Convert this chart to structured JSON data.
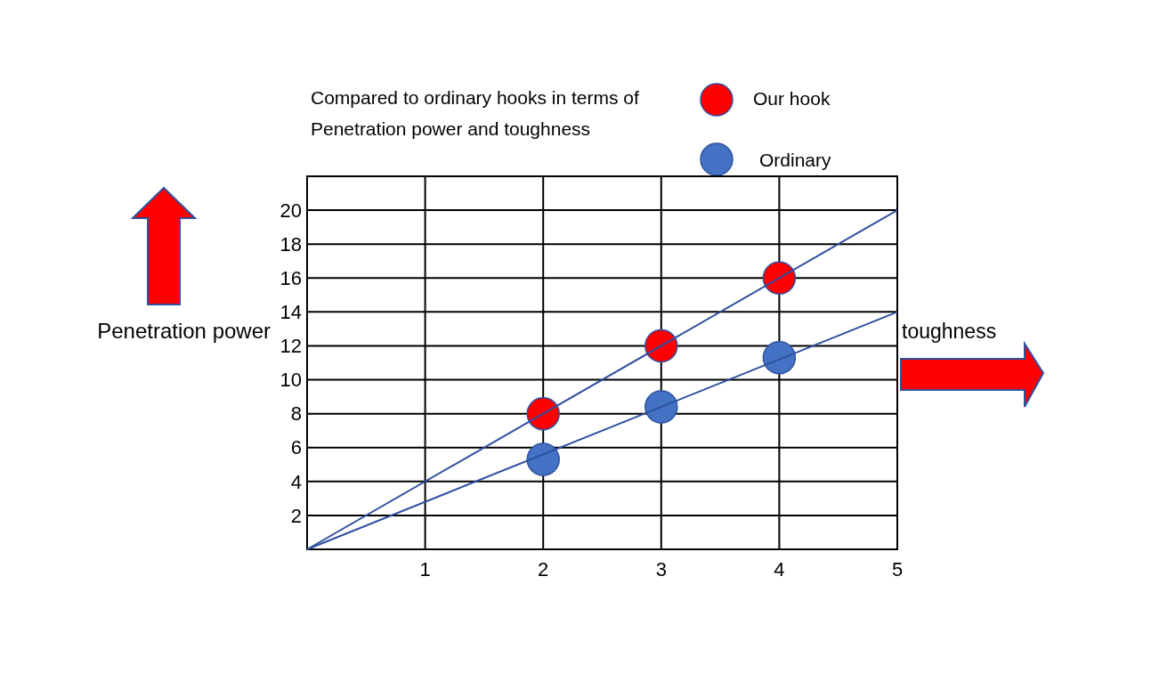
{
  "chart_data": {
    "type": "scatter",
    "title": "Compared to ordinary hooks in terms of Penetration power and toughness",
    "xlabel": "toughness",
    "ylabel": "Penetration power",
    "xlim": [
      0,
      5
    ],
    "xticks": [
      1,
      2,
      3,
      4,
      5
    ],
    "ylim": [
      0,
      22
    ],
    "yticks": [
      2,
      4,
      6,
      8,
      10,
      12,
      14,
      16,
      18,
      20
    ],
    "grid": true,
    "legend": "top right",
    "series": [
      {
        "name": "Our hook",
        "color": "#ff0000",
        "marker": "circle",
        "x": [
          2,
          3,
          4
        ],
        "values": [
          8,
          12,
          16
        ]
      },
      {
        "name": "Ordinary",
        "color": "#4472c4",
        "marker": "circle",
        "x": [
          2,
          3,
          4
        ],
        "values": [
          5.3,
          8.4,
          11.3
        ]
      },
      {
        "type": "line",
        "color": "#2f4fa0",
        "x": [
          0,
          5
        ],
        "values": [
          0,
          20
        ],
        "marker": "none"
      },
      {
        "type": "line",
        "color": "#2f4fa0",
        "x": [
          0,
          5
        ],
        "values": [
          0,
          14
        ],
        "marker": "none"
      }
    ]
  }
}
